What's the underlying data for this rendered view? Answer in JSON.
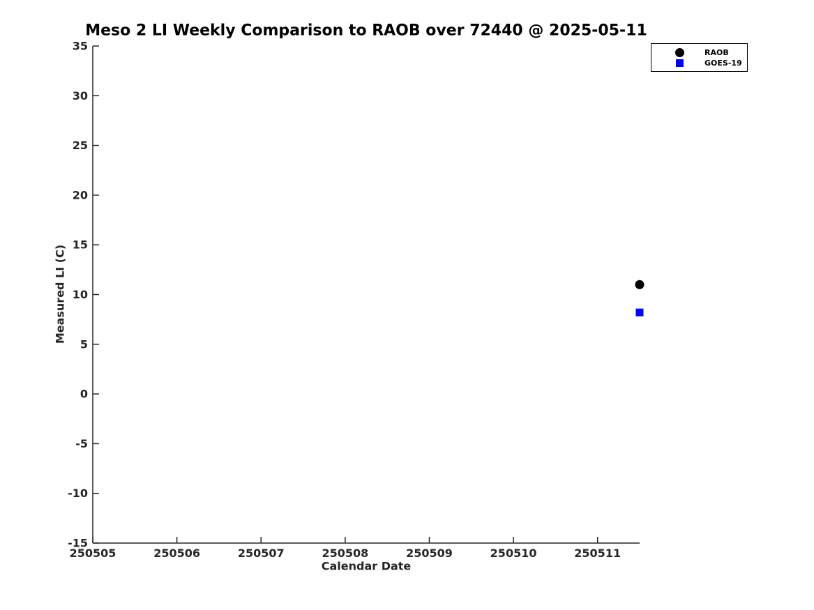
{
  "chart_data": {
    "type": "scatter",
    "title": "Meso 2 LI Weekly Comparison to RAOB over 72440 @ 2025-05-11",
    "xlabel": "Calendar Date",
    "ylabel": "Measured LI (C)",
    "xlim": [
      250505,
      250511.5
    ],
    "ylim": [
      -15,
      35
    ],
    "x_ticks": [
      250505,
      250506,
      250507,
      250508,
      250509,
      250510,
      250511
    ],
    "y_ticks": [
      -15,
      -10,
      -5,
      0,
      5,
      10,
      15,
      20,
      25,
      30,
      35
    ],
    "grid": false,
    "background_color": "#ffffff",
    "axis_color": "#262626",
    "legend_position": "top-right",
    "series": [
      {
        "name": "RAOB",
        "marker": "circle",
        "color": "#000000",
        "points": [
          {
            "x": 250511.5,
            "y": 11.0
          }
        ]
      },
      {
        "name": "GOES-19",
        "marker": "square",
        "color": "#0000ff",
        "points": [
          {
            "x": 250511.5,
            "y": 8.2
          }
        ]
      }
    ]
  }
}
